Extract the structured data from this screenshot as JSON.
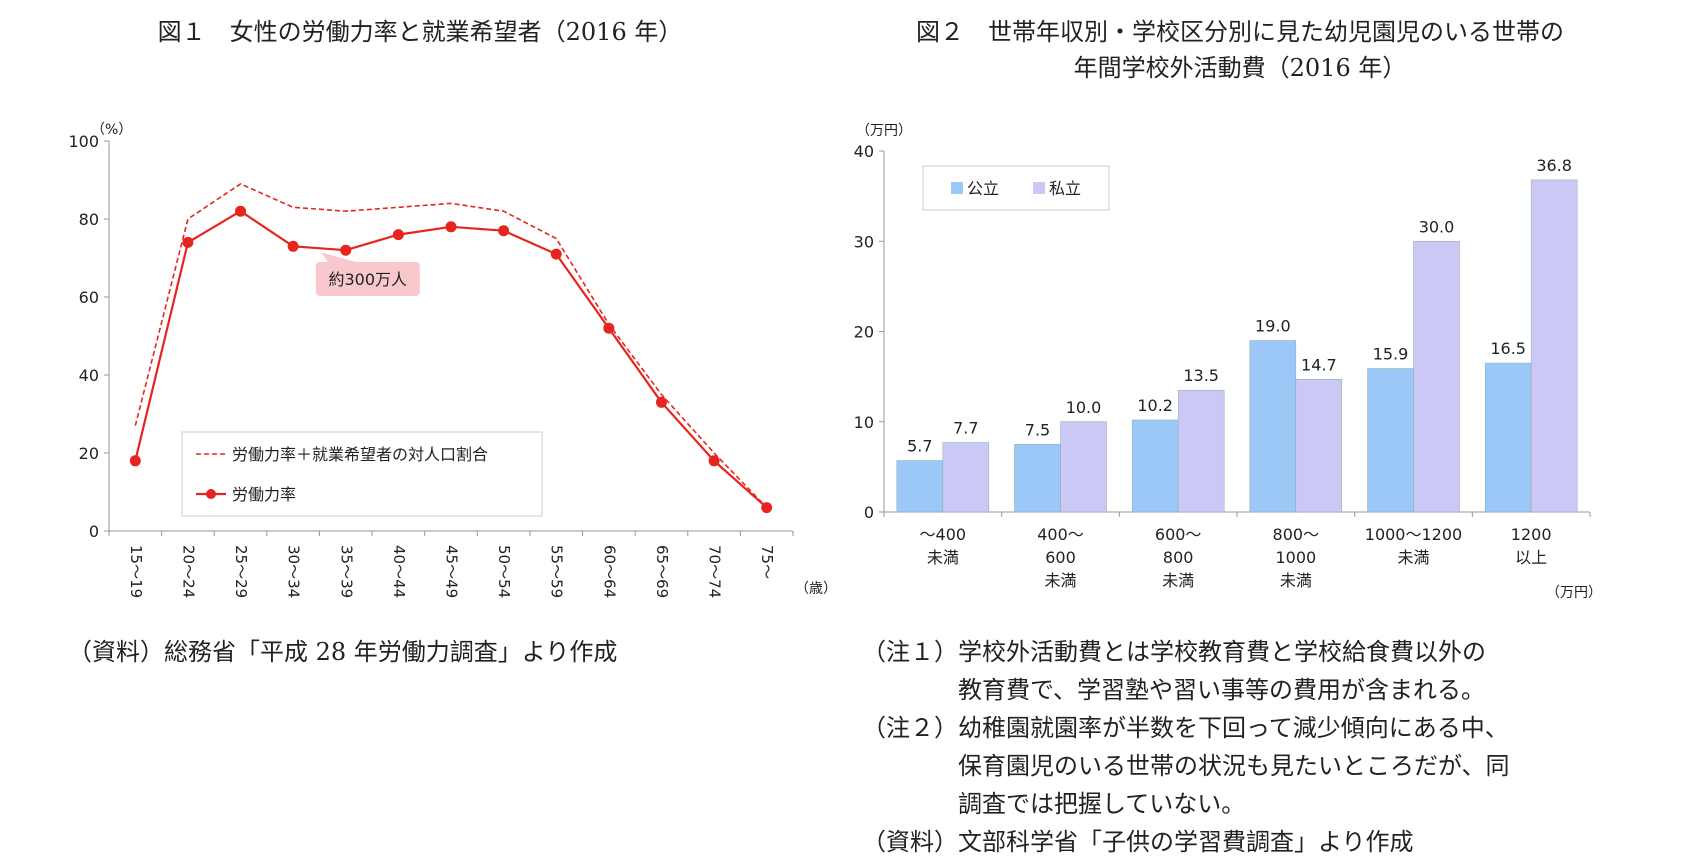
{
  "figure1": {
    "title": "図１　女性の労働力率と就業希望者（2016 年）",
    "source": "（資料）総務省「平成 28 年労働力調査」より作成",
    "annotation": "約300万人",
    "chart_data": {
      "type": "line",
      "x": [
        "15～19",
        "20～24",
        "25～29",
        "30～34",
        "35～39",
        "40～44",
        "45～49",
        "50～54",
        "55～59",
        "60～64",
        "65～69",
        "70～74",
        "75～"
      ],
      "series": [
        {
          "name": "労働力率＋就業希望者の対人口割合",
          "values": [
            27,
            80,
            89,
            83,
            82,
            83,
            84,
            82,
            75,
            53,
            35,
            20,
            6
          ],
          "color": "#e8241f",
          "dashed": true
        },
        {
          "name": "労働力率",
          "values": [
            18,
            74,
            82,
            73,
            72,
            76,
            78,
            77,
            71,
            52,
            33,
            18,
            6
          ],
          "color": "#e8241f",
          "marker": "circle"
        }
      ],
      "yunit": "（%）",
      "xunit": "（歳）",
      "ylim": [
        0,
        100
      ],
      "yticks": [
        0,
        20,
        40,
        60,
        80,
        100
      ],
      "legend": "bottom-left",
      "grid": false
    }
  },
  "figure2": {
    "title_line1": "図２　世帯年収別・学校区分別に見た幼児園児のいる世帯の",
    "title_line2": "年間学校外活動費（2016 年）",
    "chart_data": {
      "type": "bar",
      "categories": [
        [
          "～400",
          "未満"
        ],
        [
          "400～",
          "600",
          "未満"
        ],
        [
          "600～",
          "800",
          "未満"
        ],
        [
          "800～",
          "1000",
          "未満"
        ],
        [
          "1000～1200",
          "未満"
        ],
        [
          "1200",
          "以上"
        ]
      ],
      "series": [
        {
          "name": "公立",
          "values": [
            5.7,
            7.5,
            10.2,
            19.0,
            15.9,
            16.5
          ],
          "labels": [
            "5.7",
            "7.5",
            "10.2",
            "19.0",
            "15.9",
            "16.5"
          ],
          "color": "#9cc8f7"
        },
        {
          "name": "私立",
          "values": [
            7.7,
            10.0,
            13.5,
            14.7,
            30.0,
            36.8
          ],
          "labels": [
            "7.7",
            "10.0",
            "13.5",
            "14.7",
            "30.0",
            "36.8"
          ],
          "color": "#cbc8f6"
        }
      ],
      "yunit": "（万円）",
      "xunit": "（万円）",
      "ylim": [
        0,
        40
      ],
      "yticks": [
        0,
        10,
        20,
        30,
        40
      ],
      "legend": "top-left",
      "grid": false
    },
    "notes": [
      {
        "label": "（注１）",
        "lines": [
          "学校外活動費とは学校教育費と学校給食費以外の",
          "教育費で、学習塾や習い事等の費用が含まれる。"
        ]
      },
      {
        "label": "（注２）",
        "lines": [
          "幼稚園就園率が半数を下回って減少傾向にある中、",
          "保育園児のいる世帯の状況も見たいところだが、同",
          "調査では把握していない。"
        ]
      },
      {
        "label": "（資料）",
        "lines": [
          "文部科学省「子供の学習費調査」より作成"
        ]
      }
    ]
  }
}
